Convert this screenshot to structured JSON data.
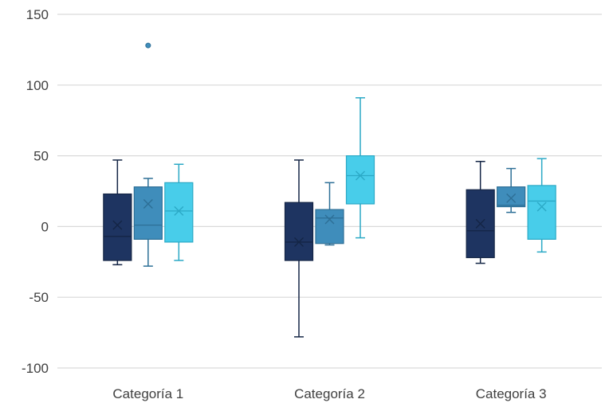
{
  "chart_data": {
    "type": "box",
    "title": "",
    "xlabel": "",
    "ylabel": "",
    "ylim": [
      -100,
      150
    ],
    "yticks": [
      -100,
      -50,
      0,
      50,
      100,
      150
    ],
    "grid": true,
    "categories": [
      "Categoría 1",
      "Categoría 2",
      "Categoría 3"
    ],
    "series": [
      {
        "color": "#1e3461",
        "stroke": "#142545",
        "boxes": [
          {
            "whisker_low": -27,
            "q1": -24,
            "median": -7,
            "q3": 23,
            "whisker_high": 47,
            "mean": 1,
            "outliers": []
          },
          {
            "whisker_low": -78,
            "q1": -24,
            "median": -11,
            "q3": 17,
            "whisker_high": 47,
            "mean": -11,
            "outliers": []
          },
          {
            "whisker_low": -26,
            "q1": -22,
            "median": -3,
            "q3": 26,
            "whisker_high": 46,
            "mean": 2,
            "outliers": []
          }
        ]
      },
      {
        "color": "#3f8dbb",
        "stroke": "#2d6f96",
        "boxes": [
          {
            "whisker_low": -28,
            "q1": -9,
            "median": 1,
            "q3": 28,
            "whisker_high": 34,
            "mean": 16,
            "outliers": [
              128
            ]
          },
          {
            "whisker_low": -13,
            "q1": -12,
            "median": 6,
            "q3": 12,
            "whisker_high": 31,
            "mean": 5,
            "outliers": []
          },
          {
            "whisker_low": 10,
            "q1": 14,
            "median": 15,
            "q3": 28,
            "whisker_high": 41,
            "mean": 20,
            "outliers": []
          }
        ]
      },
      {
        "color": "#48cdea",
        "stroke": "#2ba9c6",
        "boxes": [
          {
            "whisker_low": -24,
            "q1": -11,
            "median": 11,
            "q3": 31,
            "whisker_high": 44,
            "mean": 11,
            "outliers": []
          },
          {
            "whisker_low": -8,
            "q1": 16,
            "median": 36,
            "q3": 50,
            "whisker_high": 91,
            "mean": 36,
            "outliers": []
          },
          {
            "whisker_low": -18,
            "q1": -9,
            "median": 18,
            "q3": 29,
            "whisker_high": 48,
            "mean": 14,
            "outliers": []
          }
        ]
      }
    ]
  }
}
